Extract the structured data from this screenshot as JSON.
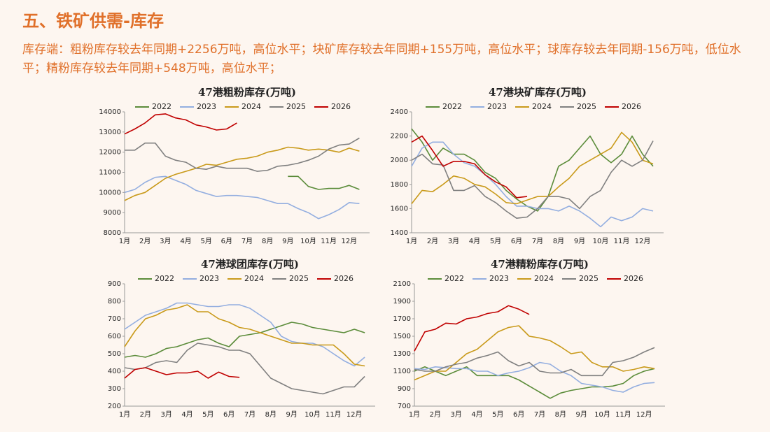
{
  "header": {
    "title": "五、铁矿供需-库存",
    "text": "库存端：粗粉库存较去年同期+2256万吨，高位水平；块矿库存较去年同期+155万吨，高位水平；球库存较去年同期-156万吨，低位水平；精粉库存较去年同期+548万吨，高位水平；"
  },
  "chart_data": [
    {
      "type": "line",
      "title": "47港粗粉库存(万吨)",
      "categories": [
        "1月",
        null,
        "2月",
        null,
        "3月",
        null,
        "4月",
        null,
        "5月",
        null,
        "6月",
        null,
        "7月",
        null,
        "8月",
        null,
        "9月",
        null,
        "10月",
        null,
        "11月",
        null,
        "12月",
        null
      ],
      "ylim": [
        8000,
        14000
      ],
      "yticks": [
        8000,
        9000,
        10000,
        11000,
        12000,
        13000,
        14000
      ],
      "legend": "top",
      "series": [
        {
          "name": "2022",
          "color": "#5b8c3a",
          "values": [
            null,
            null,
            null,
            null,
            null,
            null,
            null,
            null,
            null,
            null,
            null,
            null,
            null,
            null,
            null,
            null,
            10800,
            10800,
            10300,
            10150,
            10200,
            10200,
            10350,
            10150
          ]
        },
        {
          "name": "2023",
          "color": "#93aee0",
          "values": [
            10000,
            10150,
            10500,
            10750,
            10800,
            10600,
            10400,
            10100,
            9950,
            9800,
            9850,
            9850,
            9800,
            9750,
            9600,
            9450,
            9450,
            9200,
            9000,
            8700,
            8900,
            9150,
            9500,
            9450
          ]
        },
        {
          "name": "2024",
          "color": "#c99a1a",
          "values": [
            9600,
            9850,
            10000,
            10350,
            10700,
            10900,
            11050,
            11200,
            11400,
            11350,
            11500,
            11650,
            11700,
            11800,
            12000,
            12100,
            12250,
            12200,
            12100,
            12150,
            12100,
            12000,
            12200,
            12050
          ]
        },
        {
          "name": "2025",
          "color": "#808080",
          "values": [
            12100,
            12100,
            12450,
            12450,
            11800,
            11600,
            11500,
            11200,
            11150,
            11300,
            11200,
            11200,
            11200,
            11050,
            11100,
            11300,
            11350,
            11450,
            11600,
            11800,
            12150,
            12350,
            12400,
            12700
          ]
        },
        {
          "name": "2026",
          "color": "#c00000",
          "values": [
            12900,
            13150,
            13450,
            13850,
            13900,
            13700,
            13600,
            13350,
            13250,
            13100,
            13150,
            13450,
            null,
            null,
            null,
            null,
            null,
            null,
            null,
            null,
            null,
            null,
            null,
            null
          ]
        }
      ]
    },
    {
      "type": "line",
      "title": "47港块矿库存(万吨)",
      "categories": [
        "1月",
        null,
        "2月",
        null,
        "3月",
        null,
        "4月",
        null,
        "5月",
        null,
        "6月",
        null,
        "7月",
        null,
        "8月",
        null,
        "9月",
        null,
        "10月",
        null,
        "11月",
        null,
        "12月",
        null
      ],
      "ylim": [
        1400,
        2400
      ],
      "yticks": [
        1400,
        1600,
        1800,
        2000,
        2200,
        2400
      ],
      "legend": "top",
      "series": [
        {
          "name": "2022",
          "color": "#5b8c3a",
          "values": [
            2260,
            2150,
            2000,
            2100,
            2050,
            2050,
            2000,
            1900,
            1850,
            1750,
            1680,
            1620,
            1580,
            1700,
            1950,
            2000,
            2100,
            2200,
            2050,
            1980,
            2050,
            2200,
            2050,
            1950
          ]
        },
        {
          "name": "2023",
          "color": "#93aee0",
          "values": [
            1950,
            2100,
            2150,
            2150,
            2050,
            1980,
            1950,
            1880,
            1800,
            1700,
            1620,
            1620,
            1600,
            1600,
            1580,
            1620,
            1580,
            1520,
            1450,
            1530,
            1500,
            1530,
            1600,
            1580
          ]
        },
        {
          "name": "2024",
          "color": "#c99a1a",
          "values": [
            1640,
            1750,
            1740,
            1800,
            1870,
            1850,
            1800,
            1780,
            1720,
            1650,
            1640,
            1670,
            1700,
            1700,
            1780,
            1850,
            1950,
            2000,
            2050,
            2100,
            2230,
            2150,
            2000,
            1970
          ]
        },
        {
          "name": "2025",
          "color": "#808080",
          "values": [
            2000,
            2050,
            1970,
            1960,
            1750,
            1750,
            1790,
            1700,
            1650,
            1580,
            1520,
            1530,
            1600,
            1700,
            1700,
            1680,
            1600,
            1700,
            1750,
            1900,
            2000,
            1950,
            2000,
            2160
          ]
        },
        {
          "name": "2026",
          "color": "#c00000",
          "values": [
            2150,
            2200,
            2080,
            1950,
            1990,
            1990,
            1970,
            1880,
            1820,
            1780,
            1690,
            1700,
            null,
            null,
            null,
            null,
            null,
            null,
            null,
            null,
            null,
            null,
            null,
            null
          ]
        }
      ]
    },
    {
      "type": "line",
      "title": "47港球团库存(万吨)",
      "categories": [
        "1月",
        null,
        "2月",
        null,
        "3月",
        null,
        "4月",
        null,
        "5月",
        null,
        "6月",
        null,
        "7月",
        null,
        "8月",
        null,
        "9月",
        null,
        "10月",
        null,
        "11月",
        null,
        "12月",
        null
      ],
      "ylim": [
        200,
        900
      ],
      "yticks": [
        200,
        300,
        400,
        500,
        600,
        700,
        800,
        900
      ],
      "legend": "top",
      "series": [
        {
          "name": "2022",
          "color": "#5b8c3a",
          "values": [
            480,
            490,
            480,
            500,
            530,
            540,
            560,
            580,
            590,
            560,
            540,
            600,
            610,
            620,
            640,
            660,
            680,
            670,
            650,
            640,
            630,
            620,
            640,
            620
          ]
        },
        {
          "name": "2023",
          "color": "#93aee0",
          "values": [
            640,
            680,
            720,
            740,
            760,
            790,
            790,
            780,
            770,
            770,
            780,
            780,
            760,
            720,
            680,
            600,
            570,
            560,
            560,
            540,
            500,
            460,
            430,
            480
          ]
        },
        {
          "name": "2024",
          "color": "#c99a1a",
          "values": [
            540,
            630,
            700,
            720,
            750,
            760,
            780,
            740,
            740,
            700,
            680,
            650,
            640,
            620,
            600,
            580,
            560,
            560,
            550,
            550,
            550,
            500,
            440,
            430
          ]
        },
        {
          "name": "2025",
          "color": "#808080",
          "values": [
            420,
            410,
            420,
            450,
            460,
            450,
            520,
            560,
            550,
            540,
            520,
            520,
            500,
            430,
            360,
            330,
            300,
            290,
            280,
            270,
            290,
            310,
            310,
            370
          ]
        },
        {
          "name": "2026",
          "color": "#c00000",
          "values": [
            360,
            410,
            420,
            400,
            380,
            390,
            390,
            400,
            360,
            395,
            370,
            365,
            null,
            null,
            null,
            null,
            null,
            null,
            null,
            null,
            null,
            null,
            null,
            null
          ]
        }
      ]
    },
    {
      "type": "line",
      "title": "47港精粉库存(万吨)",
      "categories": [
        "1月",
        null,
        "2月",
        null,
        "3月",
        null,
        "4月",
        null,
        "5月",
        null,
        "6月",
        null,
        "7月",
        null,
        "8月",
        null,
        "9月",
        null,
        "10月",
        null,
        "11月",
        null,
        "12月",
        null
      ],
      "ylim": [
        700,
        2100
      ],
      "yticks": [
        700,
        900,
        1100,
        1300,
        1500,
        1700,
        1900,
        2100
      ],
      "legend": "top",
      "series": [
        {
          "name": "2022",
          "color": "#5b8c3a",
          "values": [
            1100,
            1150,
            1100,
            1050,
            1100,
            1150,
            1050,
            1050,
            1050,
            1050,
            1000,
            930,
            860,
            790,
            850,
            880,
            900,
            920,
            920,
            930,
            960,
            1050,
            1100,
            1130
          ]
        },
        {
          "name": "2023",
          "color": "#93aee0",
          "values": [
            1130,
            1120,
            1150,
            1140,
            1130,
            1130,
            1100,
            1100,
            1050,
            1080,
            1100,
            1140,
            1200,
            1180,
            1100,
            1050,
            960,
            940,
            920,
            880,
            860,
            920,
            960,
            970
          ]
        },
        {
          "name": "2024",
          "color": "#c99a1a",
          "values": [
            1000,
            1050,
            1100,
            1100,
            1200,
            1300,
            1350,
            1450,
            1550,
            1600,
            1620,
            1500,
            1480,
            1450,
            1380,
            1300,
            1320,
            1200,
            1150,
            1150,
            1100,
            1120,
            1150,
            1130
          ]
        },
        {
          "name": "2025",
          "color": "#808080",
          "values": [
            1120,
            1100,
            1100,
            1150,
            1180,
            1200,
            1250,
            1280,
            1320,
            1220,
            1160,
            1200,
            1100,
            1080,
            1080,
            1120,
            1050,
            1050,
            1050,
            1200,
            1220,
            1260,
            1320,
            1370
          ]
        },
        {
          "name": "2026",
          "color": "#c00000",
          "values": [
            1330,
            1550,
            1580,
            1650,
            1640,
            1700,
            1720,
            1760,
            1780,
            1850,
            1810,
            1750,
            null,
            null,
            null,
            null,
            null,
            null,
            null,
            null,
            null,
            null,
            null,
            null
          ]
        }
      ]
    }
  ]
}
